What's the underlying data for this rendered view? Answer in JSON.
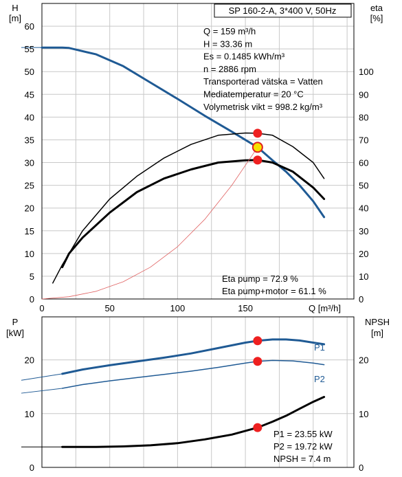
{
  "chart_data": [
    {
      "type": "line",
      "title": "SP 160-2-A, 3*400 V, 50Hz",
      "xlabel": "Q [m³/h]",
      "ylabel": "H\n[m]",
      "ylabel_lines": [
        "H",
        "[m]"
      ],
      "y2label_lines": [
        "eta",
        "[%]"
      ],
      "xlim": [
        0,
        230
      ],
      "ylim": [
        0,
        65
      ],
      "y2lim": [
        0,
        130
      ],
      "x_ticks": [
        0,
        50,
        100,
        150
      ],
      "y_ticks": [
        0,
        5,
        10,
        15,
        20,
        25,
        30,
        35,
        40,
        45,
        50,
        55,
        60
      ],
      "y2_ticks": [
        0,
        10,
        20,
        30,
        40,
        50,
        60,
        70,
        80,
        90,
        100
      ],
      "grid": true,
      "info_lines": [
        "Q = 159 m³/h",
        "H = 33.36 m",
        "Es = 0.1485 kWh/m³",
        "n = 2886 rpm",
        "Transporterad vätska = Vatten",
        "Mediatemperatur = 20 °C",
        "Volymetrisk vikt = 998.2 kg/m³"
      ],
      "annotations": [
        "Eta pump = 72.9 %",
        "Eta pump+motor = 61.1 %"
      ],
      "series": [
        {
          "axis": "left",
          "color": "#1f5a94",
          "width": 3,
          "x": [
            0,
            15,
            20,
            40,
            60,
            80,
            100,
            120,
            140,
            159,
            170,
            180,
            190,
            200,
            208
          ],
          "values": [
            55.3,
            55.3,
            55.2,
            53.8,
            51.2,
            47.6,
            44.0,
            40.3,
            36.8,
            33.36,
            30.5,
            28.0,
            25.0,
            21.5,
            18.0
          ]
        },
        {
          "axis": "right",
          "color": "#000000",
          "width": 1.5,
          "x": [
            8,
            15,
            30,
            50,
            70,
            90,
            110,
            130,
            150,
            159,
            170,
            185,
            200,
            208
          ],
          "values": [
            7,
            15,
            30,
            44,
            54,
            62,
            68,
            72,
            73,
            72.9,
            72,
            67,
            60,
            53
          ]
        },
        {
          "axis": "right",
          "color": "#000000",
          "width": 3,
          "x": [
            15,
            20,
            30,
            50,
            70,
            90,
            110,
            130,
            150,
            159,
            170,
            185,
            200,
            208
          ],
          "values": [
            14,
            20,
            27,
            38,
            47,
            53,
            57,
            60,
            61,
            61.1,
            60,
            56,
            49,
            44
          ]
        },
        {
          "axis": "left",
          "color": "#e06060",
          "width": 0.8,
          "x": [
            0,
            20,
            40,
            60,
            80,
            100,
            120,
            140,
            159
          ],
          "values": [
            0,
            0.5,
            1.7,
            3.8,
            7.0,
            11.5,
            17.5,
            25.0,
            33.36
          ]
        }
      ],
      "points": [
        {
          "x": 159,
          "y": 33.36,
          "axis": "left",
          "style": "yellow"
        },
        {
          "x": 159,
          "y": 72.9,
          "axis": "right",
          "style": "red"
        },
        {
          "x": 159,
          "y": 61.1,
          "axis": "right",
          "style": "red"
        }
      ]
    },
    {
      "type": "line",
      "xlim": [
        0,
        230
      ],
      "ylim": [
        0,
        28
      ],
      "y2lim": [
        0,
        28
      ],
      "ylabel_lines": [
        "P",
        "[kW]"
      ],
      "y2label_lines": [
        "NPSH",
        "[m]"
      ],
      "y_ticks": [
        0,
        10,
        20
      ],
      "y2_ticks": [
        0,
        10,
        20
      ],
      "grid": true,
      "annotations": [
        "P1 = 23.55 kW",
        "P2 = 19.72 kW",
        "NPSH = 7.4 m"
      ],
      "series": [
        {
          "name": "P1",
          "color": "#1f5a94",
          "width": 3,
          "x": [
            15,
            30,
            50,
            70,
            90,
            110,
            130,
            150,
            159,
            170,
            180,
            190,
            200,
            208
          ],
          "values": [
            17.4,
            18.2,
            19.0,
            19.7,
            20.4,
            21.2,
            22.2,
            23.2,
            23.55,
            23.8,
            23.8,
            23.6,
            23.2,
            22.9
          ]
        },
        {
          "name": "P2",
          "color": "#1f5a94",
          "width": 1.5,
          "x": [
            15,
            30,
            50,
            70,
            90,
            110,
            130,
            150,
            159,
            170,
            185,
            200,
            208
          ],
          "values": [
            14.7,
            15.4,
            16.1,
            16.7,
            17.3,
            17.9,
            18.6,
            19.4,
            19.72,
            19.9,
            19.8,
            19.4,
            19.1
          ]
        },
        {
          "name": "",
          "color": "#000000",
          "width": 3,
          "x": [
            15,
            40,
            60,
            80,
            100,
            120,
            140,
            159,
            170,
            180,
            190,
            200,
            208
          ],
          "values": [
            3.8,
            3.8,
            3.9,
            4.1,
            4.5,
            5.2,
            6.1,
            7.4,
            8.5,
            9.6,
            10.9,
            12.2,
            13.1
          ]
        }
      ],
      "points": [
        {
          "x": 159,
          "y": 23.55,
          "style": "red"
        },
        {
          "x": 159,
          "y": 19.72,
          "style": "red"
        },
        {
          "x": 159,
          "y": 7.4,
          "style": "red"
        }
      ]
    }
  ]
}
